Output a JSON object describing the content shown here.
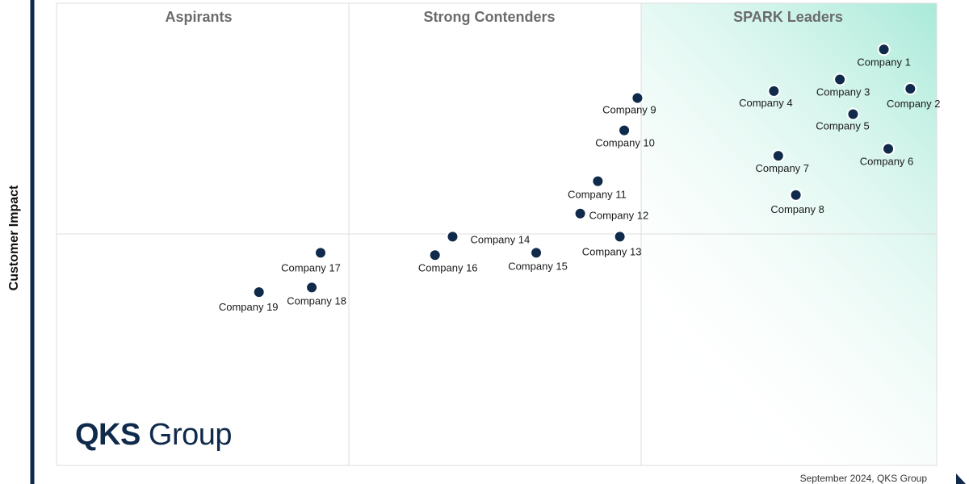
{
  "chart_data": {
    "type": "scatter",
    "ylabel": "Customer Impact",
    "quadrants": [
      "Aspirants",
      "Strong Contenders",
      "SPARK Leaders"
    ],
    "points": [
      {
        "name": "Company 1",
        "x": 9.4,
        "y": 9.0
      },
      {
        "name": "Company 2",
        "x": 9.7,
        "y": 8.15
      },
      {
        "name": "Company 3",
        "x": 8.9,
        "y": 8.35
      },
      {
        "name": "Company 4",
        "x": 8.15,
        "y": 8.1
      },
      {
        "name": "Company 5",
        "x": 9.05,
        "y": 7.6
      },
      {
        "name": "Company 6",
        "x": 9.45,
        "y": 6.85
      },
      {
        "name": "Company 7",
        "x": 8.2,
        "y": 6.7
      },
      {
        "name": "Company 8",
        "x": 8.4,
        "y": 5.85
      },
      {
        "name": "Company 9",
        "x": 6.6,
        "y": 7.95
      },
      {
        "name": "Company 10",
        "x": 6.45,
        "y": 7.25
      },
      {
        "name": "Company 11",
        "x": 6.15,
        "y": 6.15
      },
      {
        "name": "Company 12",
        "x": 5.95,
        "y": 5.45
      },
      {
        "name": "Company 13",
        "x": 6.4,
        "y": 4.95
      },
      {
        "name": "Company 14",
        "x": 4.5,
        "y": 4.95
      },
      {
        "name": "Company 15",
        "x": 5.45,
        "y": 4.6
      },
      {
        "name": "Company 16",
        "x": 4.3,
        "y": 4.55
      },
      {
        "name": "Company 17",
        "x": 3.0,
        "y": 4.6
      },
      {
        "name": "Company 18",
        "x": 2.9,
        "y": 3.85
      },
      {
        "name": "Company 19",
        "x": 2.3,
        "y": 3.75
      }
    ],
    "xlim": [
      0,
      10
    ],
    "ylim": [
      0,
      10
    ],
    "grid": true,
    "colors": {
      "point": "#0f2a4a",
      "leader_gradient": "#a9ead8",
      "axis": "#0f2a4a"
    }
  },
  "branding": {
    "logo_bold": "QKS",
    "logo_light": " Group"
  },
  "footer": "September 2024, QKS Group"
}
